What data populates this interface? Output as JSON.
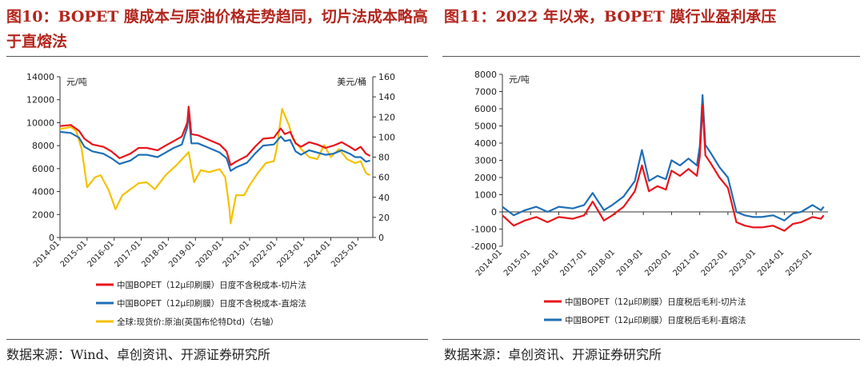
{
  "left": {
    "title": "图10：BOPET 膜成本与原油价格走势趋同，切片法成本略高于直熔法",
    "source": "数据来源：Wind、卓创资讯、开源证券研究所"
  },
  "right": {
    "title": "图11：2022 年以来，BOPET 膜行业盈利承压",
    "source": "数据来源：卓创资讯、开源证券研究所"
  },
  "colors": {
    "red": "#e8141c",
    "blue": "#1f6fb5",
    "yellow": "#f5c100"
  },
  "chart_data": [
    {
      "type": "line",
      "unit_left": "元/吨",
      "unit_right": "美元/桶",
      "x_ticks": [
        "2014-01",
        "2015-01",
        "2016-01",
        "2017-01",
        "2018-01",
        "2019-01",
        "2020-01",
        "2021-01",
        "2022-01",
        "2023-01",
        "2024-01",
        "2025-01"
      ],
      "y_ticks": [
        "0",
        "2000",
        "4000",
        "6000",
        "8000",
        "10000",
        "12000",
        "14000"
      ],
      "y2_ticks": [
        "0",
        "20",
        "40",
        "60",
        "80",
        "100",
        "120",
        "140",
        "160"
      ],
      "ylim": [
        0,
        14000
      ],
      "y2lim": [
        0,
        160
      ],
      "grid": false,
      "legend_position": "bottom",
      "series": [
        {
          "name": "中国BOPET（12μ印刷膜）日度不含税成本-切片法",
          "axis": "left",
          "color": "#e8141c",
          "x": [
            2014.0,
            2014.4,
            2014.7,
            2014.9,
            2015.2,
            2015.6,
            2015.9,
            2016.2,
            2016.6,
            2016.9,
            2017.2,
            2017.6,
            2017.9,
            2018.2,
            2018.5,
            2018.7,
            2018.75,
            2018.85,
            2019.1,
            2019.5,
            2019.9,
            2020.15,
            2020.3,
            2020.5,
            2020.9,
            2021.2,
            2021.5,
            2021.9,
            2022.15,
            2022.3,
            2022.5,
            2022.7,
            2022.9,
            2023.2,
            2023.5,
            2023.8,
            2024.1,
            2024.4,
            2024.7,
            2024.9,
            2025.1,
            2025.3,
            2025.45
          ],
          "y": [
            9700,
            9800,
            9300,
            8600,
            8100,
            7900,
            7500,
            6900,
            7300,
            7800,
            7800,
            7600,
            8000,
            8400,
            8800,
            10000,
            11400,
            9000,
            8900,
            8500,
            8100,
            7500,
            6300,
            6600,
            7100,
            7900,
            8600,
            8700,
            9500,
            9000,
            9200,
            8200,
            7900,
            8300,
            8100,
            7800,
            8000,
            8300,
            7900,
            7600,
            7900,
            7300,
            7100
          ]
        },
        {
          "name": "中国BOPET（12μ印刷膜）日度不含税成本-直熔法",
          "axis": "left",
          "color": "#1f6fb5",
          "x": [
            2014.0,
            2014.4,
            2014.7,
            2014.9,
            2015.2,
            2015.6,
            2015.9,
            2016.2,
            2016.6,
            2016.9,
            2017.2,
            2017.6,
            2017.9,
            2018.2,
            2018.5,
            2018.7,
            2018.75,
            2018.85,
            2019.1,
            2019.5,
            2019.9,
            2020.15,
            2020.3,
            2020.5,
            2020.9,
            2021.2,
            2021.5,
            2021.9,
            2022.15,
            2022.3,
            2022.5,
            2022.7,
            2022.9,
            2023.2,
            2023.5,
            2023.8,
            2024.1,
            2024.4,
            2024.7,
            2024.9,
            2025.1,
            2025.3,
            2025.45
          ],
          "y": [
            9200,
            9100,
            8700,
            7900,
            7500,
            7300,
            6900,
            6400,
            6700,
            7200,
            7200,
            7000,
            7400,
            7800,
            8100,
            9600,
            11000,
            8200,
            8200,
            7800,
            7400,
            6900,
            5800,
            6100,
            6500,
            7300,
            8000,
            8100,
            8800,
            8400,
            8500,
            7500,
            7200,
            7600,
            7400,
            7200,
            7300,
            7600,
            7300,
            7000,
            7000,
            6600,
            6700
          ]
        },
        {
          "name": "全球:现货价:原油(英国布伦特Dtd)（右轴）",
          "axis": "right",
          "color": "#f5c100",
          "x": [
            2014.0,
            2014.4,
            2014.6,
            2014.8,
            2015.0,
            2015.3,
            2015.5,
            2015.8,
            2016.05,
            2016.3,
            2016.6,
            2016.9,
            2017.2,
            2017.5,
            2017.9,
            2018.3,
            2018.75,
            2018.95,
            2019.2,
            2019.5,
            2019.9,
            2020.1,
            2020.25,
            2020.3,
            2020.5,
            2020.8,
            2021.0,
            2021.3,
            2021.6,
            2021.9,
            2022.0,
            2022.2,
            2022.45,
            2022.6,
            2022.9,
            2023.2,
            2023.5,
            2023.75,
            2024.0,
            2024.3,
            2024.6,
            2024.9,
            2025.1,
            2025.3,
            2025.45
          ],
          "y": [
            108,
            110,
            106,
            88,
            50,
            60,
            62,
            47,
            28,
            42,
            48,
            54,
            55,
            48,
            62,
            72,
            85,
            55,
            67,
            65,
            68,
            60,
            30,
            14,
            42,
            42,
            52,
            64,
            74,
            76,
            88,
            128,
            112,
            98,
            88,
            80,
            78,
            92,
            80,
            88,
            78,
            74,
            76,
            64,
            62
          ]
        }
      ]
    },
    {
      "type": "line",
      "unit_left": "元/吨",
      "x_ticks": [
        "2014-01",
        "2015-01",
        "2016-01",
        "2017-01",
        "2018-01",
        "2019-01",
        "2020-01",
        "2021-01",
        "2022-01",
        "2023-01",
        "2024-01",
        "2025-01"
      ],
      "y_ticks": [
        "-2000",
        "-1000",
        "0",
        "1000",
        "2000",
        "3000",
        "4000",
        "5000",
        "6000",
        "7000",
        "8000"
      ],
      "ylim": [
        -2000,
        8000
      ],
      "grid": false,
      "legend_position": "bottom",
      "series": [
        {
          "name": "中国BOPET（12μ印刷膜）日度税后毛利-切片法",
          "color": "#e8141c",
          "x": [
            2014.0,
            2014.4,
            2014.8,
            2015.2,
            2015.6,
            2016.0,
            2016.5,
            2016.9,
            2017.2,
            2017.6,
            2017.9,
            2018.3,
            2018.7,
            2018.95,
            2019.2,
            2019.5,
            2019.8,
            2020.0,
            2020.3,
            2020.6,
            2020.9,
            2021.0,
            2021.1,
            2021.2,
            2021.4,
            2021.7,
            2022.0,
            2022.3,
            2022.6,
            2022.9,
            2023.2,
            2023.6,
            2024.0,
            2024.3,
            2024.6,
            2025.0,
            2025.3,
            2025.4
          ],
          "y": [
            -200,
            -800,
            -500,
            -300,
            -600,
            -300,
            -400,
            -200,
            600,
            -500,
            -200,
            300,
            1200,
            2700,
            1200,
            1500,
            1300,
            2400,
            2100,
            2500,
            2100,
            3200,
            6200,
            3300,
            2800,
            2000,
            1400,
            -600,
            -800,
            -900,
            -900,
            -800,
            -1100,
            -700,
            -600,
            -300,
            -400,
            -200
          ]
        },
        {
          "name": "中国BOPET（12μ印刷膜）日度税后毛利-直熔法",
          "color": "#1f6fb5",
          "x": [
            2014.0,
            2014.4,
            2014.8,
            2015.2,
            2015.6,
            2016.0,
            2016.5,
            2016.9,
            2017.2,
            2017.6,
            2017.9,
            2018.3,
            2018.7,
            2018.95,
            2019.2,
            2019.5,
            2019.8,
            2020.0,
            2020.3,
            2020.6,
            2020.9,
            2021.0,
            2021.1,
            2021.2,
            2021.4,
            2021.7,
            2022.0,
            2022.3,
            2022.6,
            2022.9,
            2023.2,
            2023.6,
            2024.0,
            2024.3,
            2024.6,
            2025.0,
            2025.3,
            2025.4
          ],
          "y": [
            300,
            -200,
            100,
            300,
            0,
            300,
            200,
            400,
            1100,
            100,
            400,
            900,
            1800,
            3600,
            1800,
            2100,
            1900,
            3000,
            2700,
            3100,
            2700,
            3800,
            6800,
            3900,
            3400,
            2600,
            2000,
            0,
            -200,
            -300,
            -300,
            -200,
            -500,
            -100,
            0,
            400,
            100,
            300
          ]
        }
      ]
    }
  ]
}
